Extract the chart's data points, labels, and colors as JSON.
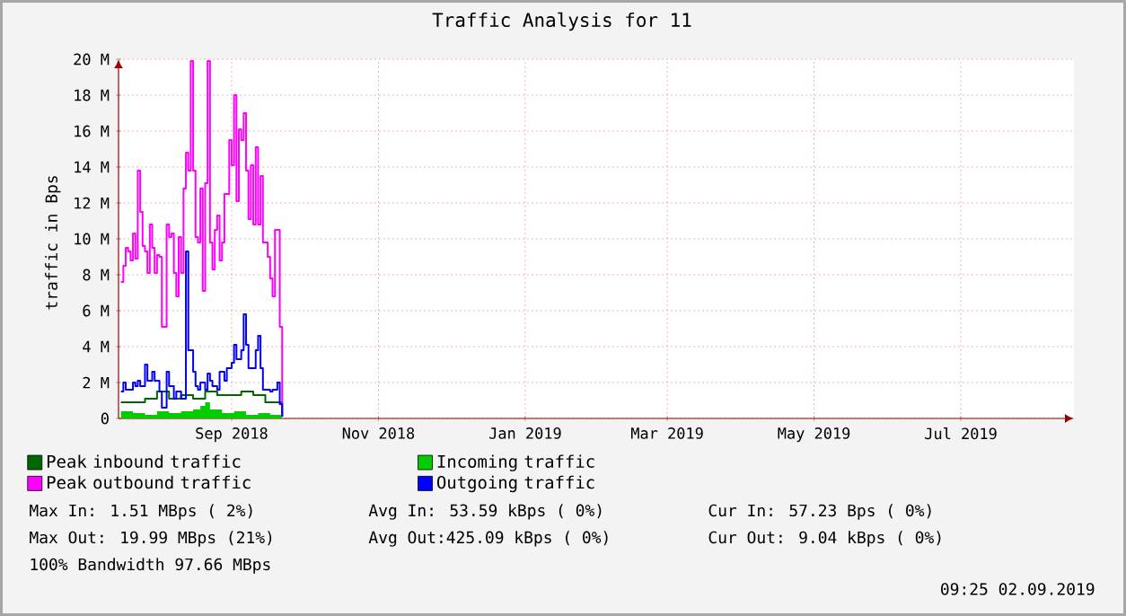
{
  "chart_data": {
    "type": "step",
    "title": "Traffic Analysis for 11",
    "ylabel": "traffic in Bps",
    "xlim": [
      "2018-07-16",
      "2019-08-17"
    ],
    "xticks": [
      {
        "value": "2018-09-01",
        "label": "Sep 2018"
      },
      {
        "value": "2018-11-01",
        "label": "Nov 2018"
      },
      {
        "value": "2019-01-01",
        "label": "Jan 2019"
      },
      {
        "value": "2019-03-01",
        "label": "Mar 2019"
      },
      {
        "value": "2019-05-01",
        "label": "May 2019"
      },
      {
        "value": "2019-07-01",
        "label": "Jul 2019"
      }
    ],
    "ylim": [
      0,
      20
    ],
    "yticks": [
      0,
      {
        "value": 2,
        "label": "2 M"
      },
      {
        "value": 4,
        "label": "4 M"
      },
      {
        "value": 6,
        "label": "6 M"
      },
      {
        "value": 8,
        "label": "8 M"
      },
      {
        "value": 10,
        "label": "10 M"
      },
      {
        "value": 12,
        "label": "12 M"
      },
      {
        "value": 14,
        "label": "14 M"
      },
      {
        "value": 16,
        "label": "16 M"
      },
      {
        "value": 18,
        "label": "18 M"
      },
      {
        "value": 20,
        "label": "20 M"
      }
    ],
    "grid": true,
    "legend": "bottom",
    "series": [
      {
        "name": "Peak inbound traffic",
        "color": "#006600",
        "x": [
          "2018-07-17",
          "2018-07-22",
          "2018-07-27",
          "2018-08-01",
          "2018-08-06",
          "2018-08-11",
          "2018-08-16",
          "2018-08-21",
          "2018-08-26",
          "2018-08-31",
          "2018-09-05",
          "2018-09-10",
          "2018-09-15",
          "2018-09-20",
          "2018-09-22"
        ],
        "values": [
          0.9,
          0.9,
          1.1,
          1.5,
          1.1,
          1.3,
          1.1,
          1.5,
          1.3,
          1.3,
          1.5,
          1.3,
          0.9,
          0.9,
          0.1
        ]
      },
      {
        "name": "Incoming traffic",
        "color": "#00cc00",
        "type": "area",
        "x": [
          "2018-07-17",
          "2018-07-22",
          "2018-07-27",
          "2018-08-01",
          "2018-08-06",
          "2018-08-11",
          "2018-08-16",
          "2018-08-19",
          "2018-08-21",
          "2018-08-23",
          "2018-08-28",
          "2018-09-02",
          "2018-09-07",
          "2018-09-12",
          "2018-09-17",
          "2018-09-22"
        ],
        "values": [
          0.4,
          0.3,
          0.2,
          0.4,
          0.3,
          0.4,
          0.5,
          0.7,
          0.9,
          0.5,
          0.3,
          0.4,
          0.2,
          0.3,
          0.2,
          0.1
        ]
      },
      {
        "name": "Peak outbound traffic",
        "color": "#ff00ff",
        "x": [
          "2018-07-17",
          "2018-07-18",
          "2018-07-19",
          "2018-07-20",
          "2018-07-21",
          "2018-07-22",
          "2018-07-23",
          "2018-07-24",
          "2018-07-25",
          "2018-07-26",
          "2018-07-27",
          "2018-07-28",
          "2018-07-29",
          "2018-07-30",
          "2018-07-31",
          "2018-08-01",
          "2018-08-02",
          "2018-08-03",
          "2018-08-05",
          "2018-08-06",
          "2018-08-07",
          "2018-08-08",
          "2018-08-09",
          "2018-08-10",
          "2018-08-11",
          "2018-08-12",
          "2018-08-13",
          "2018-08-14",
          "2018-08-15",
          "2018-08-16",
          "2018-08-17",
          "2018-08-18",
          "2018-08-19",
          "2018-08-20",
          "2018-08-21",
          "2018-08-22",
          "2018-08-23",
          "2018-08-24",
          "2018-08-25",
          "2018-08-26",
          "2018-08-27",
          "2018-08-28",
          "2018-08-29",
          "2018-08-30",
          "2018-08-31",
          "2018-09-01",
          "2018-09-02",
          "2018-09-03",
          "2018-09-04",
          "2018-09-05",
          "2018-09-06",
          "2018-09-07",
          "2018-09-08",
          "2018-09-09",
          "2018-09-10",
          "2018-09-11",
          "2018-09-12",
          "2018-09-13",
          "2018-09-14",
          "2018-09-15",
          "2018-09-16",
          "2018-09-17",
          "2018-09-18",
          "2018-09-19",
          "2018-09-21",
          "2018-09-22"
        ],
        "values": [
          7.6,
          8.5,
          9.5,
          9.3,
          8.8,
          10.3,
          8.9,
          13.8,
          11.5,
          9.6,
          9.3,
          8.1,
          10.8,
          9.5,
          8.1,
          9.1,
          9.0,
          5.1,
          10.8,
          10.1,
          10.3,
          8.1,
          6.8,
          10.1,
          8.1,
          12.8,
          14.8,
          13.8,
          19.9,
          13.8,
          10.1,
          9.8,
          12.8,
          7.1,
          13.1,
          19.9,
          9.8,
          8.3,
          10.5,
          11.3,
          8.8,
          9.8,
          12.5,
          12.5,
          15.5,
          14.1,
          18.0,
          12.1,
          16.1,
          15.5,
          17.0,
          13.8,
          11.1,
          14.1,
          10.8,
          15.1,
          10.8,
          13.5,
          9.8,
          9.8,
          9.0,
          7.8,
          6.8,
          10.5,
          5.1,
          0.1
        ]
      },
      {
        "name": "Outgoing traffic",
        "color": "#0000ff",
        "x": [
          "2018-07-17",
          "2018-07-18",
          "2018-07-19",
          "2018-07-22",
          "2018-07-23",
          "2018-07-24",
          "2018-07-25",
          "2018-07-27",
          "2018-07-28",
          "2018-07-30",
          "2018-07-31",
          "2018-08-02",
          "2018-08-03",
          "2018-08-05",
          "2018-08-06",
          "2018-08-08",
          "2018-08-09",
          "2018-08-11",
          "2018-08-13",
          "2018-08-14",
          "2018-08-16",
          "2018-08-17",
          "2018-08-18",
          "2018-08-19",
          "2018-08-21",
          "2018-08-22",
          "2018-08-23",
          "2018-08-24",
          "2018-08-26",
          "2018-08-27",
          "2018-08-29",
          "2018-08-30",
          "2018-09-01",
          "2018-09-02",
          "2018-09-03",
          "2018-09-05",
          "2018-09-06",
          "2018-09-07",
          "2018-09-08",
          "2018-09-09",
          "2018-09-11",
          "2018-09-12",
          "2018-09-13",
          "2018-09-14",
          "2018-09-15",
          "2018-09-17",
          "2018-09-18",
          "2018-09-20",
          "2018-09-21",
          "2018-09-22"
        ],
        "values": [
          1.5,
          2.0,
          1.6,
          2.0,
          1.8,
          2.1,
          1.8,
          3.0,
          2.1,
          2.6,
          2.1,
          1.5,
          0.6,
          2.6,
          1.8,
          1.1,
          1.5,
          1.1,
          9.3,
          3.8,
          2.6,
          1.8,
          1.6,
          2.0,
          1.6,
          2.5,
          2.1,
          1.8,
          1.6,
          2.6,
          2.1,
          2.8,
          3.1,
          4.1,
          3.3,
          3.8,
          5.8,
          4.1,
          2.8,
          2.8,
          3.8,
          4.6,
          2.8,
          1.6,
          1.6,
          1.5,
          1.6,
          2.0,
          0.8,
          0.1
        ]
      }
    ],
    "annotations": [
      "Max In: 1.51 MBps ( 2%)",
      "Avg In: 53.59 kBps ( 0%)",
      "Cur In: 57.23 Bps ( 0%)",
      "Max Out: 19.99 MBps (21%)",
      "Avg Out:425.09 kBps ( 0%)",
      "Cur Out: 9.04 kBps ( 0%)",
      "100% Bandwidth 97.66 MBps",
      "09:25 02.09.2019"
    ]
  }
}
